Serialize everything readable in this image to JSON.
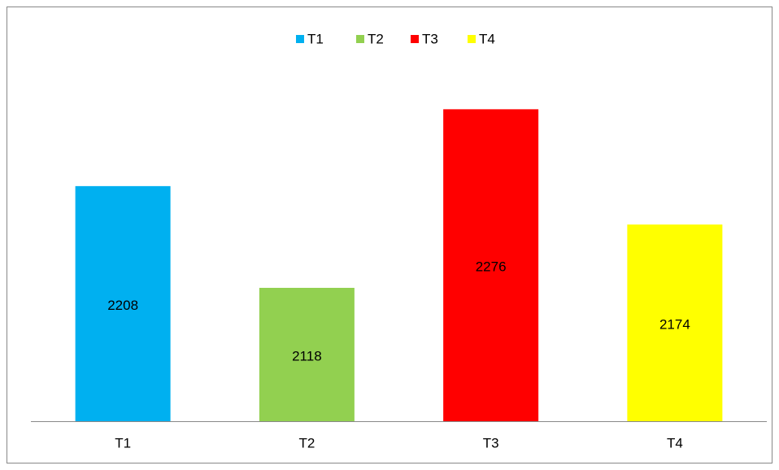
{
  "chart_data": {
    "type": "bar",
    "categories": [
      "T1",
      "T2",
      "T3",
      "T4"
    ],
    "values": [
      2208,
      2118,
      2276,
      2174
    ],
    "colors": [
      "#00b0f0",
      "#92d050",
      "#ff0000",
      "#ffff00"
    ],
    "ylim": [
      2000,
      2300
    ],
    "legend": "top",
    "data_labels": true
  }
}
